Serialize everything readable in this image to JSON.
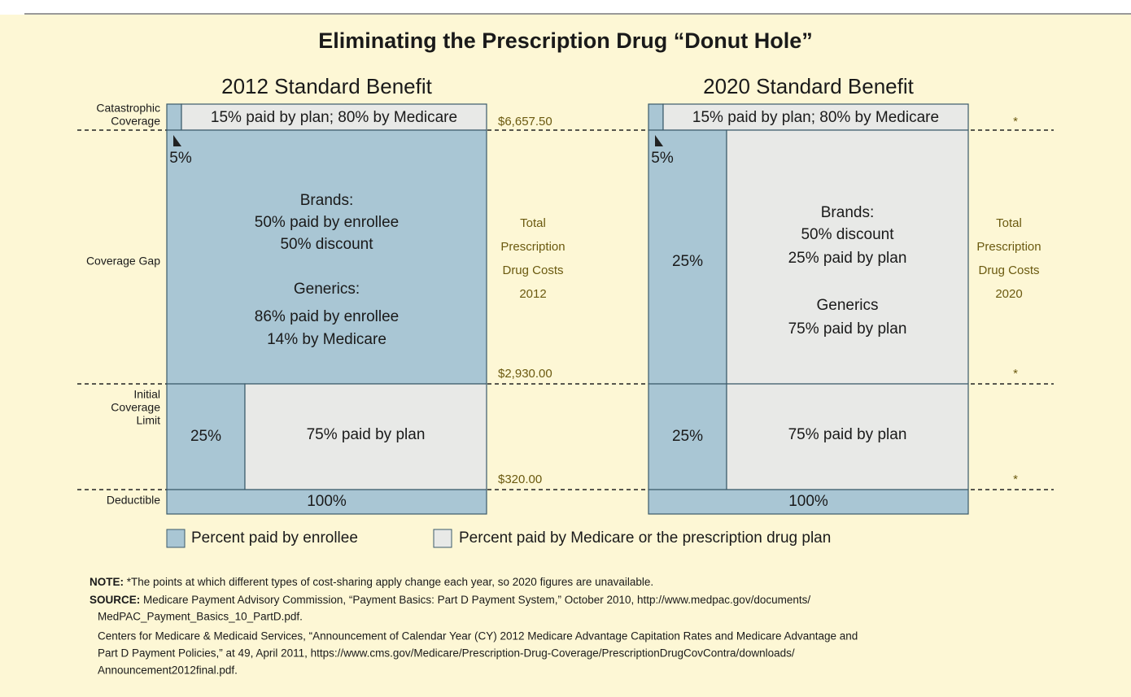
{
  "title": "Eliminating the Prescription Drug “Donut Hole”",
  "row_labels": {
    "catastrophic": [
      "Catastrophic",
      "Coverage"
    ],
    "gap": "Coverage Gap",
    "initial": [
      "Initial",
      "Coverage",
      "Limit"
    ],
    "deductible": "Deductible"
  },
  "panels": [
    {
      "title": "2012 Standard Benefit",
      "catastrophic": "15% paid by plan; 80% by Medicare",
      "arrow_label": "5%",
      "gap_lines": [
        "Brands:",
        "50% paid by enrollee",
        "50% discount",
        "Generics:",
        "86% paid by enrollee",
        "14% by Medicare"
      ],
      "initial_enrollee": "25%",
      "initial_plan": "75% paid by plan",
      "deductible": "100%",
      "thresholds": [
        "$6,657.50",
        "$2,930.00",
        "$320.00"
      ],
      "total": [
        "Total",
        "Prescription",
        "Drug Costs",
        "2012"
      ]
    },
    {
      "title": "2020 Standard Benefit",
      "catastrophic": "15% paid by plan; 80% by Medicare",
      "arrow_label": "5%",
      "gap_enrollee": "25%",
      "gap_lines": [
        "Brands:",
        "50% discount",
        "25% paid by plan",
        "Generics",
        "75% paid by plan"
      ],
      "initial_enrollee": "25%",
      "initial_plan": "75% paid by plan",
      "deductible": "100%",
      "thresholds": [
        "*",
        "*",
        "*"
      ],
      "total": [
        "Total",
        "Prescription",
        "Drug Costs",
        "2020"
      ]
    }
  ],
  "legend": [
    "Percent paid by enrollee",
    "Percent paid by Medicare or the prescription drug plan"
  ],
  "note_label": "NOTE:",
  "note": " *The points at which different types of cost-sharing apply change each year, so 2020 figures are unavailable.",
  "source_label": "SOURCE:",
  "source": [
    "Medicare Payment Advisory Commission, “Payment Basics: Part D Payment System,” October 2010, http://www.medpac.gov/documents/",
    "MedPAC_Payment_Basics_10_PartD.pdf.",
    "Centers for Medicare & Medicaid Services, “Announcement of Calendar Year (CY) 2012 Medicare Advantage Capitation Rates and Medicare Advantage and",
    "Part D Payment Policies,” at 49, April 2011, https://www.cms.gov/Medicare/Prescription-Drug-Coverage/PrescriptionDrugCovContra/downloads/",
    "Announcement2012final.pdf."
  ]
}
